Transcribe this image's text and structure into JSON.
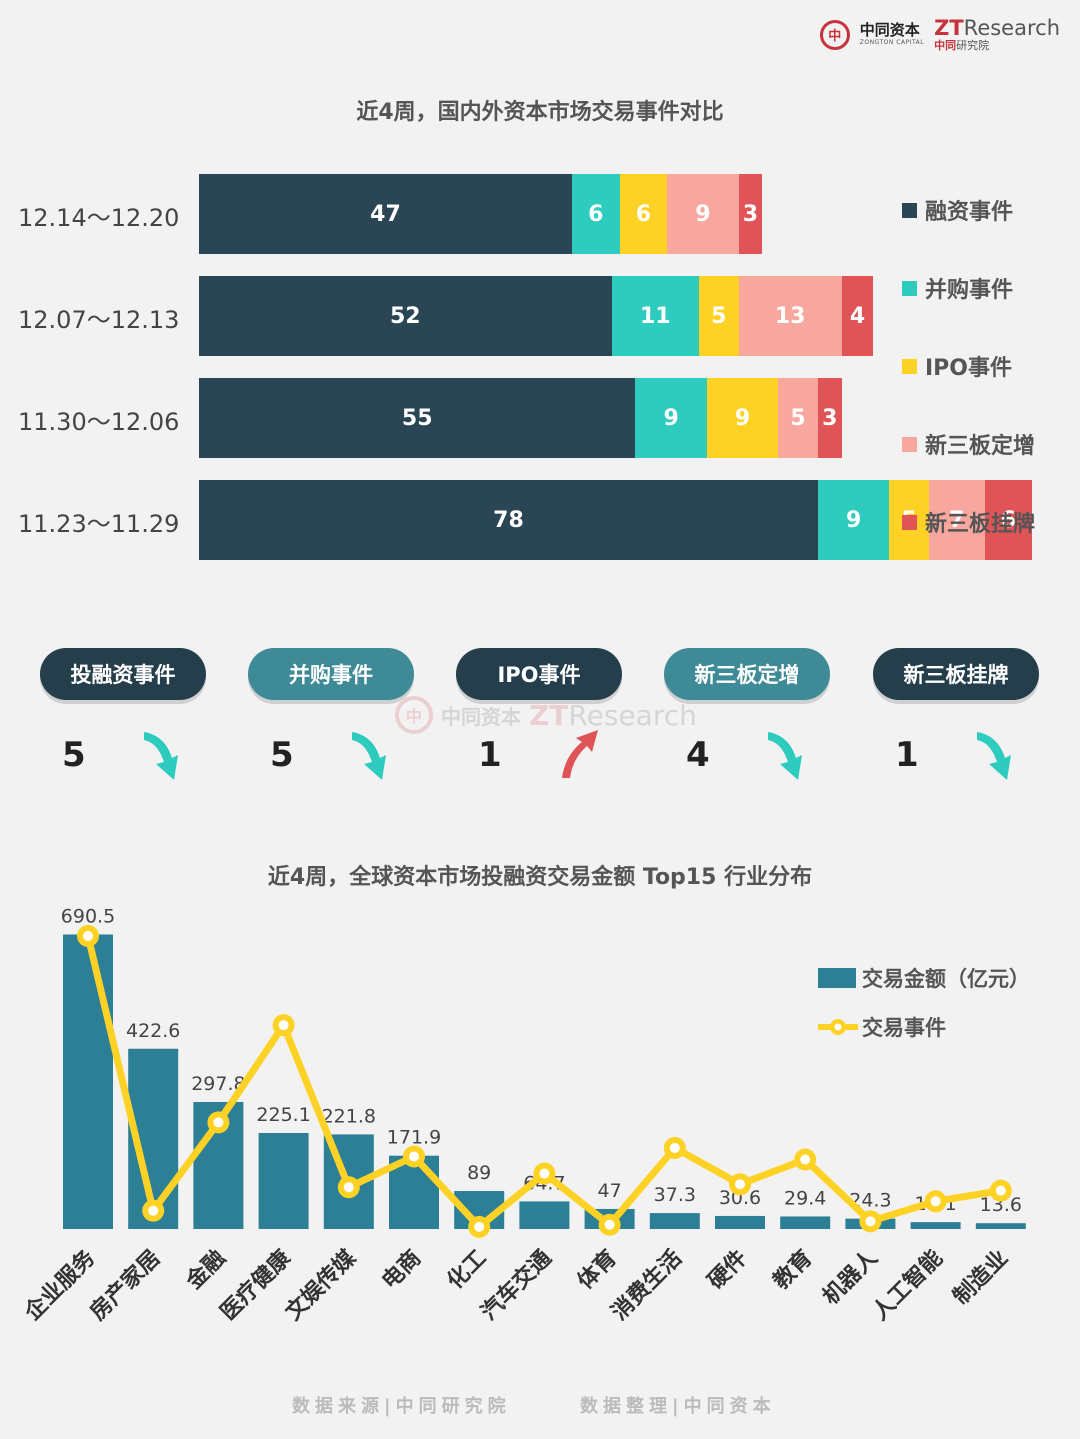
{
  "logo": {
    "seal": "中",
    "cn_name": "中同资本",
    "en_name": "ZONGTON CAPITAL",
    "zt_prefix": "ZT",
    "zt_rest": "Research",
    "sub_red": "中同",
    "sub_rest": "研究院"
  },
  "chart1_title": "近4周，国内外资本市场交易事件对比",
  "colors": {
    "dark": "#2a4655",
    "teal": "#2ecbbf",
    "yellow": "#fdd225",
    "pink": "#f8a79e",
    "red": "#e05457",
    "bar_teal": "#2d7f96",
    "line_yellow": "#fdd225",
    "arrow_teal": "#2ecbbf",
    "arrow_red": "#e05457",
    "pill_dark": "#243e4b",
    "pill_teal": "#3f8a97"
  },
  "chart_data": [
    {
      "type": "bar",
      "orientation": "horizontal",
      "stacked": true,
      "title": "近4周，国内外资本市场交易事件对比",
      "categories": [
        "12.14～12.20",
        "12.07～12.13",
        "11.30～12.06",
        "11.23～11.29"
      ],
      "series": [
        {
          "name": "融资事件",
          "color": "#2a4655",
          "values": [
            47,
            52,
            55,
            78
          ]
        },
        {
          "name": "并购事件",
          "color": "#2ecbbf",
          "values": [
            6,
            11,
            9,
            9
          ]
        },
        {
          "name": "IPO事件",
          "color": "#fdd225",
          "values": [
            6,
            5,
            9,
            5
          ]
        },
        {
          "name": "新三板定增",
          "color": "#f8a79e",
          "values": [
            9,
            13,
            5,
            7
          ]
        },
        {
          "name": "新三板挂牌",
          "color": "#e05457",
          "values": [
            3,
            4,
            3,
            6
          ]
        }
      ],
      "legend_position": "right"
    },
    {
      "type": "bar",
      "combo": "bar+line",
      "title": "近4周，全球资本市场投融资交易金额 Top15 行业分布",
      "categories": [
        "企业服务",
        "房产家居",
        "金融",
        "医疗健康",
        "文娱传媒",
        "电商",
        "化工",
        "汽车交通",
        "体育",
        "消费生活",
        "硬件",
        "教育",
        "机器人",
        "人工智能",
        "制造业"
      ],
      "series": [
        {
          "name": "交易金额（亿元）",
          "kind": "bar",
          "color": "#2d7f96",
          "values": [
            690.5,
            422.6,
            297.8,
            225.1,
            221.8,
            171.9,
            89,
            64.7,
            47,
            37.3,
            30.6,
            29.4,
            24.3,
            16.1,
            13.6
          ]
        },
        {
          "name": "交易事件",
          "kind": "line",
          "color": "#fdd225",
          "values": [
            687,
            43,
            250,
            478,
            98,
            170,
            5,
            130,
            10,
            190,
            105,
            163,
            18,
            65,
            90
          ]
        }
      ],
      "bar_value_labels": [
        "690.5",
        "422.6",
        "297.8",
        "225.1",
        "221.8",
        "171.9",
        "89",
        "64.7",
        "47",
        "37.3",
        "30.6",
        "29.4",
        "24.3",
        "16.1",
        "13.6"
      ],
      "ylim": [
        0,
        720
      ],
      "grid": false,
      "legend_position": "top-right"
    }
  ],
  "change_cards": [
    {
      "label": "投融资事件",
      "count": "5",
      "direction": "down",
      "style": "dark"
    },
    {
      "label": "并购事件",
      "count": "5",
      "direction": "down",
      "style": "teal"
    },
    {
      "label": "IPO事件",
      "count": "1",
      "direction": "up",
      "style": "dark"
    },
    {
      "label": "新三板定增",
      "count": "4",
      "direction": "down",
      "style": "teal"
    },
    {
      "label": "新三板挂牌",
      "count": "1",
      "direction": "down",
      "style": "dark"
    }
  ],
  "watermark": {
    "seal": "中",
    "cn": "中同资本",
    "zt_prefix": "ZT",
    "zt_rest": "Research"
  },
  "chart2_title": "近4周，全球资本市场投融资交易金额 Top15 行业分布",
  "footer": {
    "source": "数据来源|中同研究院",
    "compiled": "数据整理|中同资本"
  }
}
